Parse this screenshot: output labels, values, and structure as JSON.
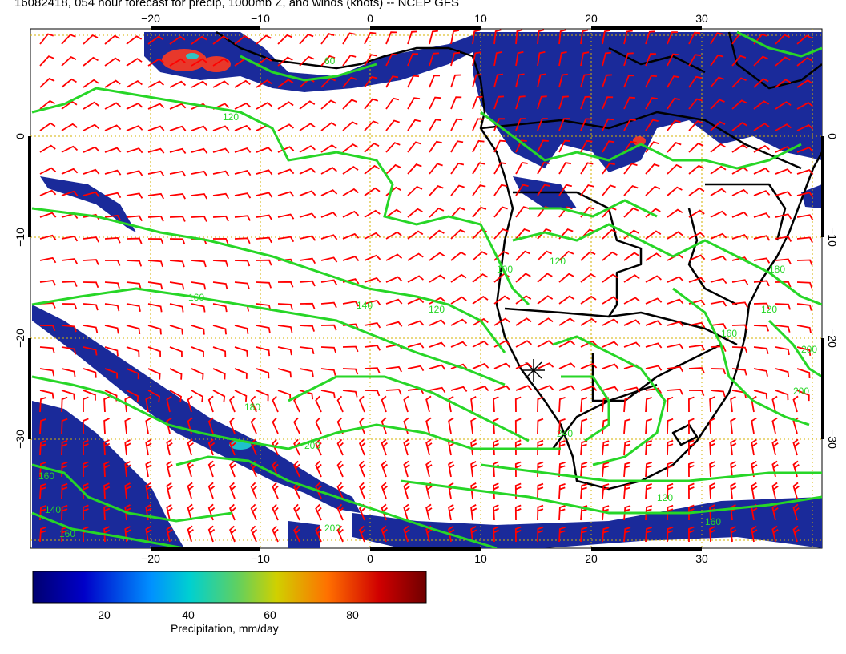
{
  "title": "16082418, 054 hour forecast for precip, 1000mb Z, and winds (knots) -- NCEP GFS",
  "map": {
    "x_ticks": [
      "−20",
      "−10",
      "0",
      "10",
      "20",
      "30"
    ],
    "y_ticks": [
      "0",
      "−10",
      "−20",
      "−30"
    ],
    "contour_labels": [
      "60",
      "120",
      "120",
      "160",
      "160",
      "140",
      "120",
      "100",
      "120",
      "180",
      "200",
      "200",
      "200",
      "160",
      "180",
      "140",
      "120",
      "160",
      "200",
      "240",
      "160"
    ],
    "colors": {
      "contour": "#27d627",
      "wind_barb": "#ff0000",
      "coast": "#000000",
      "grid": "#d4b000",
      "precip_low": "#1a2a9a",
      "precip_high": "#ff2000"
    }
  },
  "colorbar": {
    "ticks": [
      "20",
      "40",
      "60",
      "80"
    ],
    "label": "Precipitation, mm/day"
  }
}
